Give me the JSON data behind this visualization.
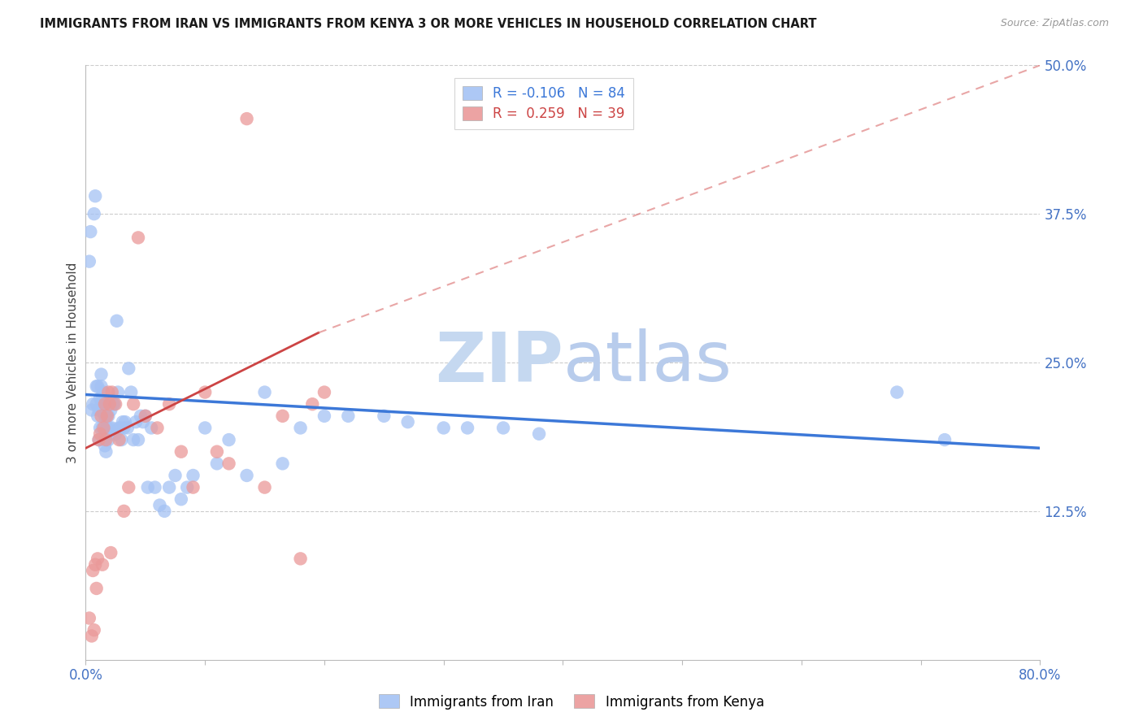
{
  "title": "IMMIGRANTS FROM IRAN VS IMMIGRANTS FROM KENYA 3 OR MORE VEHICLES IN HOUSEHOLD CORRELATION CHART",
  "source": "Source: ZipAtlas.com",
  "ylabel": "3 or more Vehicles in Household",
  "xlim": [
    0.0,
    0.8
  ],
  "ylim": [
    0.0,
    0.5
  ],
  "yticks_right": [
    0.125,
    0.25,
    0.375,
    0.5
  ],
  "ytick_right_labels": [
    "12.5%",
    "25.0%",
    "37.5%",
    "50.0%"
  ],
  "iran_R": -0.106,
  "iran_N": 84,
  "kenya_R": 0.259,
  "kenya_N": 39,
  "iran_color": "#a4c2f4",
  "kenya_color": "#ea9999",
  "iran_line_color": "#3c78d8",
  "kenya_line_color": "#cc4444",
  "kenya_dash_color": "#dd7777",
  "watermark_color": "#dce9f8",
  "iran_line": [
    [
      0.0,
      0.223
    ],
    [
      0.8,
      0.178
    ]
  ],
  "kenya_solid_line": [
    [
      0.0,
      0.178
    ],
    [
      0.195,
      0.275
    ]
  ],
  "kenya_dash_line": [
    [
      0.195,
      0.275
    ],
    [
      0.8,
      0.5
    ]
  ],
  "iran_scatter_x": [
    0.003,
    0.004,
    0.005,
    0.006,
    0.007,
    0.008,
    0.009,
    0.009,
    0.01,
    0.01,
    0.011,
    0.011,
    0.012,
    0.012,
    0.013,
    0.013,
    0.013,
    0.014,
    0.014,
    0.015,
    0.015,
    0.015,
    0.016,
    0.016,
    0.017,
    0.017,
    0.018,
    0.018,
    0.019,
    0.019,
    0.02,
    0.02,
    0.021,
    0.021,
    0.022,
    0.023,
    0.024,
    0.025,
    0.026,
    0.027,
    0.028,
    0.029,
    0.03,
    0.031,
    0.032,
    0.033,
    0.035,
    0.036,
    0.038,
    0.04,
    0.042,
    0.044,
    0.046,
    0.048,
    0.05,
    0.052,
    0.055,
    0.058,
    0.062,
    0.066,
    0.07,
    0.075,
    0.08,
    0.085,
    0.09,
    0.1,
    0.11,
    0.12,
    0.135,
    0.15,
    0.165,
    0.18,
    0.2,
    0.22,
    0.25,
    0.27,
    0.3,
    0.32,
    0.35,
    0.38,
    0.68,
    0.72
  ],
  "iran_scatter_y": [
    0.335,
    0.36,
    0.21,
    0.215,
    0.375,
    0.39,
    0.215,
    0.23,
    0.205,
    0.23,
    0.185,
    0.21,
    0.195,
    0.22,
    0.215,
    0.23,
    0.24,
    0.195,
    0.22,
    0.185,
    0.21,
    0.225,
    0.18,
    0.205,
    0.175,
    0.205,
    0.195,
    0.215,
    0.185,
    0.205,
    0.195,
    0.215,
    0.19,
    0.21,
    0.195,
    0.215,
    0.215,
    0.19,
    0.285,
    0.225,
    0.195,
    0.195,
    0.185,
    0.2,
    0.195,
    0.2,
    0.195,
    0.245,
    0.225,
    0.185,
    0.2,
    0.185,
    0.205,
    0.2,
    0.205,
    0.145,
    0.195,
    0.145,
    0.13,
    0.125,
    0.145,
    0.155,
    0.135,
    0.145,
    0.155,
    0.195,
    0.165,
    0.185,
    0.155,
    0.225,
    0.165,
    0.195,
    0.205,
    0.205,
    0.205,
    0.2,
    0.195,
    0.195,
    0.195,
    0.19,
    0.225,
    0.185
  ],
  "kenya_scatter_x": [
    0.003,
    0.005,
    0.006,
    0.007,
    0.008,
    0.009,
    0.01,
    0.011,
    0.012,
    0.013,
    0.014,
    0.015,
    0.016,
    0.017,
    0.018,
    0.019,
    0.02,
    0.021,
    0.022,
    0.025,
    0.028,
    0.032,
    0.036,
    0.04,
    0.044,
    0.05,
    0.06,
    0.07,
    0.08,
    0.09,
    0.1,
    0.11,
    0.12,
    0.135,
    0.15,
    0.165,
    0.18,
    0.19,
    0.2
  ],
  "kenya_scatter_y": [
    0.035,
    0.02,
    0.075,
    0.025,
    0.08,
    0.06,
    0.085,
    0.185,
    0.19,
    0.205,
    0.08,
    0.195,
    0.215,
    0.185,
    0.205,
    0.225,
    0.215,
    0.09,
    0.225,
    0.215,
    0.185,
    0.125,
    0.145,
    0.215,
    0.355,
    0.205,
    0.195,
    0.215,
    0.175,
    0.145,
    0.225,
    0.175,
    0.165,
    0.455,
    0.145,
    0.205,
    0.085,
    0.215,
    0.225
  ]
}
